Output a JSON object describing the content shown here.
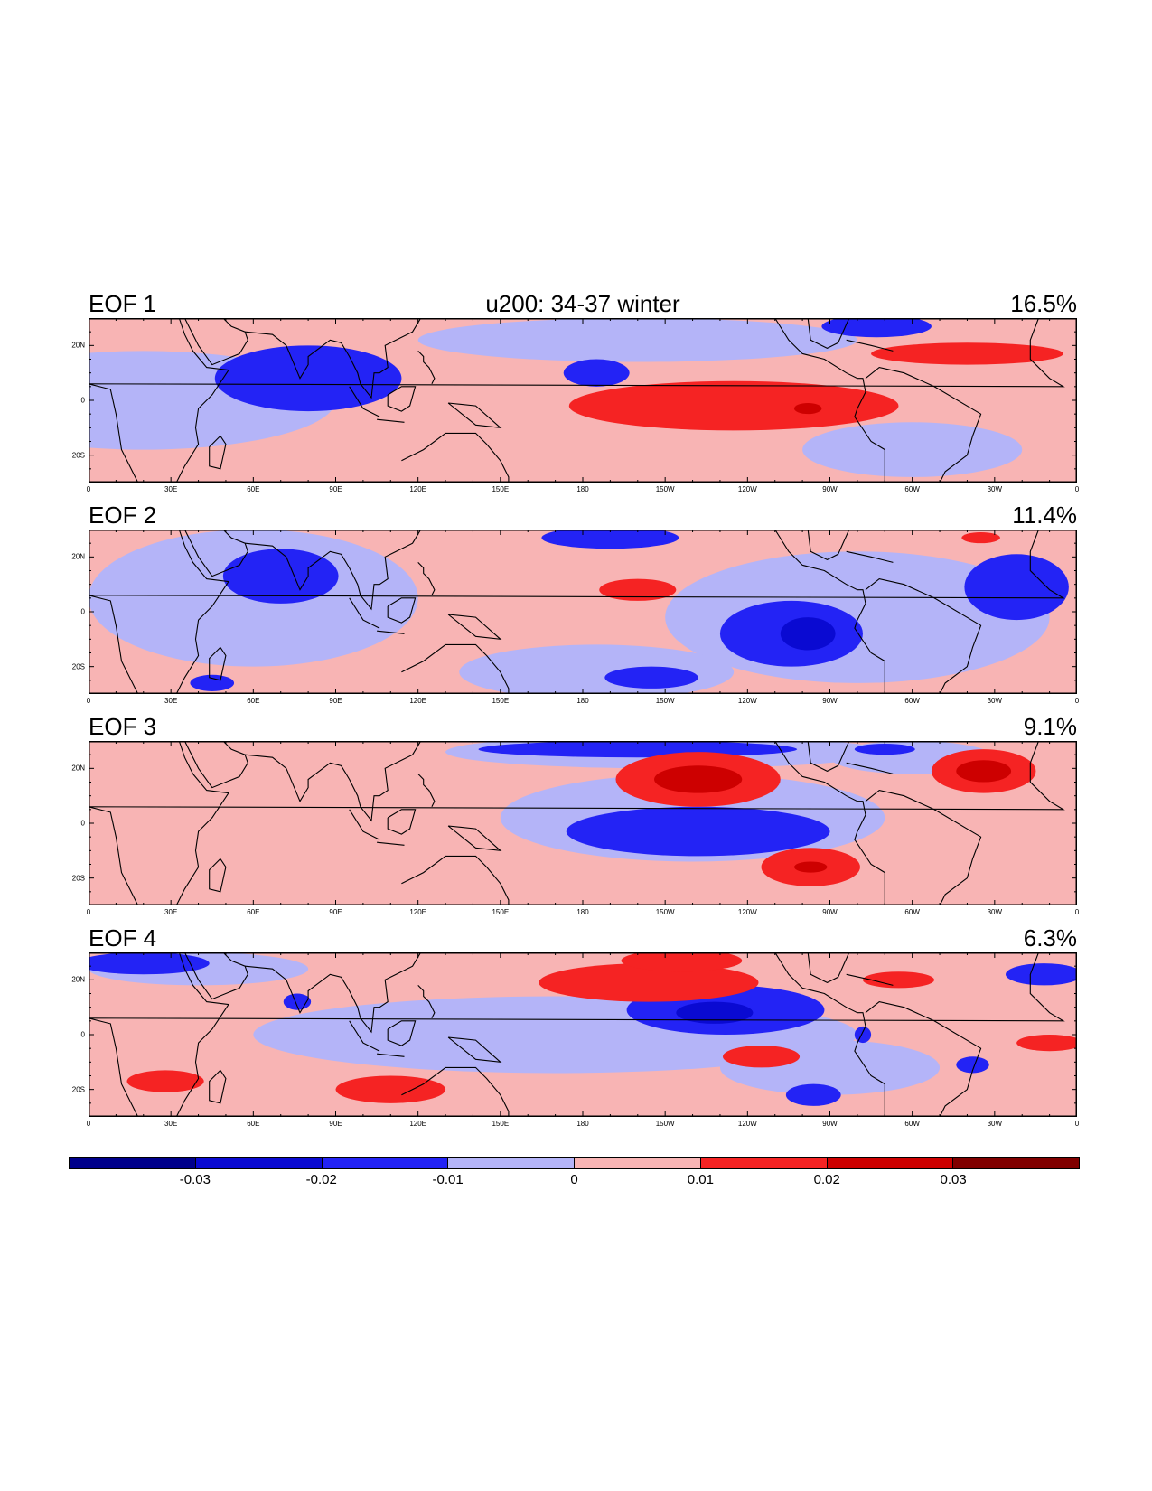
{
  "title": "u200: 34-37 winter",
  "chart_data": {
    "type": "heatmap",
    "title": "u200: 34-37 winter",
    "projection": "cylindrical-equidistant",
    "lon_ticks": [
      "0",
      "30E",
      "60E",
      "90E",
      "120E",
      "150E",
      "180",
      "150W",
      "120W",
      "90W",
      "60W",
      "30W",
      "0"
    ],
    "lat_ticks": [
      "20N",
      "0",
      "20S"
    ],
    "lat_range": [
      -30,
      30
    ],
    "lon_range": [
      0,
      360
    ],
    "panels": [
      {
        "label": "EOF 1",
        "variance": "16.5%",
        "blobs": [
          {
            "lon": 80,
            "lat": 8,
            "rlon": 34,
            "rlat": 12,
            "value": -0.015
          },
          {
            "lon": 185,
            "lat": 10,
            "rlon": 12,
            "rlat": 5,
            "value": -0.015
          },
          {
            "lon": 287,
            "lat": 27,
            "rlon": 20,
            "rlat": 4,
            "value": -0.015
          },
          {
            "lon": 235,
            "lat": -2,
            "rlon": 60,
            "rlat": 9,
            "value": 0.015
          },
          {
            "lon": 320,
            "lat": 17,
            "rlon": 35,
            "rlat": 4,
            "value": 0.015
          },
          {
            "lon": 262,
            "lat": -3,
            "rlon": 5,
            "rlat": 2,
            "value": 0.025
          }
        ]
      },
      {
        "label": "EOF 2",
        "variance": "11.4%",
        "blobs": [
          {
            "lon": 70,
            "lat": 13,
            "rlon": 21,
            "rlat": 10,
            "value": -0.015
          },
          {
            "lon": 190,
            "lat": 27,
            "rlon": 25,
            "rlat": 4,
            "value": -0.015
          },
          {
            "lon": 256,
            "lat": -8,
            "rlon": 26,
            "rlat": 12,
            "value": -0.015
          },
          {
            "lon": 262,
            "lat": -8,
            "rlon": 10,
            "rlat": 6,
            "value": -0.025
          },
          {
            "lon": 338,
            "lat": 9,
            "rlon": 19,
            "rlat": 12,
            "value": -0.015
          },
          {
            "lon": 205,
            "lat": -24,
            "rlon": 17,
            "rlat": 4,
            "value": -0.015
          },
          {
            "lon": 45,
            "lat": -26,
            "rlon": 8,
            "rlat": 3,
            "value": -0.015
          },
          {
            "lon": 200,
            "lat": 8,
            "rlon": 14,
            "rlat": 4,
            "value": 0.015
          },
          {
            "lon": 325,
            "lat": 27,
            "rlon": 7,
            "rlat": 2,
            "value": 0.015
          }
        ]
      },
      {
        "label": "EOF 3",
        "variance": "9.1%",
        "blobs": [
          {
            "lon": 200,
            "lat": 27,
            "rlon": 58,
            "rlat": 3,
            "value": -0.015
          },
          {
            "lon": 222,
            "lat": -3,
            "rlon": 48,
            "rlat": 9,
            "value": -0.015
          },
          {
            "lon": 290,
            "lat": 27,
            "rlon": 11,
            "rlat": 2,
            "value": -0.015
          },
          {
            "lon": 222,
            "lat": 16,
            "rlon": 30,
            "rlat": 10,
            "value": 0.015
          },
          {
            "lon": 222,
            "lat": 16,
            "rlon": 16,
            "rlat": 5,
            "value": 0.025
          },
          {
            "lon": 263,
            "lat": -16,
            "rlon": 18,
            "rlat": 7,
            "value": 0.015
          },
          {
            "lon": 263,
            "lat": -16,
            "rlon": 6,
            "rlat": 2,
            "value": 0.025
          },
          {
            "lon": 326,
            "lat": 19,
            "rlon": 19,
            "rlat": 8,
            "value": 0.015
          },
          {
            "lon": 326,
            "lat": 19,
            "rlon": 10,
            "rlat": 4,
            "value": 0.025
          }
        ]
      },
      {
        "label": "EOF 4",
        "variance": "6.3%",
        "blobs": [
          {
            "lon": 20,
            "lat": 26,
            "rlon": 24,
            "rlat": 4,
            "value": -0.015
          },
          {
            "lon": 76,
            "lat": 12,
            "rlon": 5,
            "rlat": 3,
            "value": -0.015
          },
          {
            "lon": 232,
            "lat": 9,
            "rlon": 36,
            "rlat": 9,
            "value": -0.015
          },
          {
            "lon": 228,
            "lat": 8,
            "rlon": 14,
            "rlat": 4,
            "value": -0.025
          },
          {
            "lon": 264,
            "lat": -22,
            "rlon": 10,
            "rlat": 4,
            "value": -0.015
          },
          {
            "lon": 348,
            "lat": 22,
            "rlon": 14,
            "rlat": 4,
            "value": -0.015
          },
          {
            "lon": 322,
            "lat": -11,
            "rlon": 6,
            "rlat": 3,
            "value": -0.015
          },
          {
            "lon": 282,
            "lat": 0,
            "rlon": 3,
            "rlat": 3,
            "value": -0.015
          },
          {
            "lon": 204,
            "lat": 19,
            "rlon": 40,
            "rlat": 7,
            "value": 0.015
          },
          {
            "lon": 216,
            "lat": 27,
            "rlon": 22,
            "rlat": 4,
            "value": 0.015
          },
          {
            "lon": 245,
            "lat": -8,
            "rlon": 14,
            "rlat": 4,
            "value": 0.015
          },
          {
            "lon": 110,
            "lat": -20,
            "rlon": 20,
            "rlat": 5,
            "value": 0.015
          },
          {
            "lon": 28,
            "lat": -17,
            "rlon": 14,
            "rlat": 4,
            "value": 0.015
          },
          {
            "lon": 350,
            "lat": -3,
            "rlon": 12,
            "rlat": 3,
            "value": 0.015
          },
          {
            "lon": 295,
            "lat": 20,
            "rlon": 13,
            "rlat": 3,
            "value": 0.015
          }
        ]
      }
    ],
    "colorbar": {
      "levels": [
        "-0.03",
        "-0.02",
        "-0.01",
        "0",
        "0.01",
        "0.02",
        "0.03"
      ],
      "colors": [
        "#00008b",
        "#0a0ad2",
        "#2323f5",
        "#b4b4f8",
        "#f8b4b4",
        "#f52323",
        "#cd0000",
        "#800000"
      ]
    }
  }
}
